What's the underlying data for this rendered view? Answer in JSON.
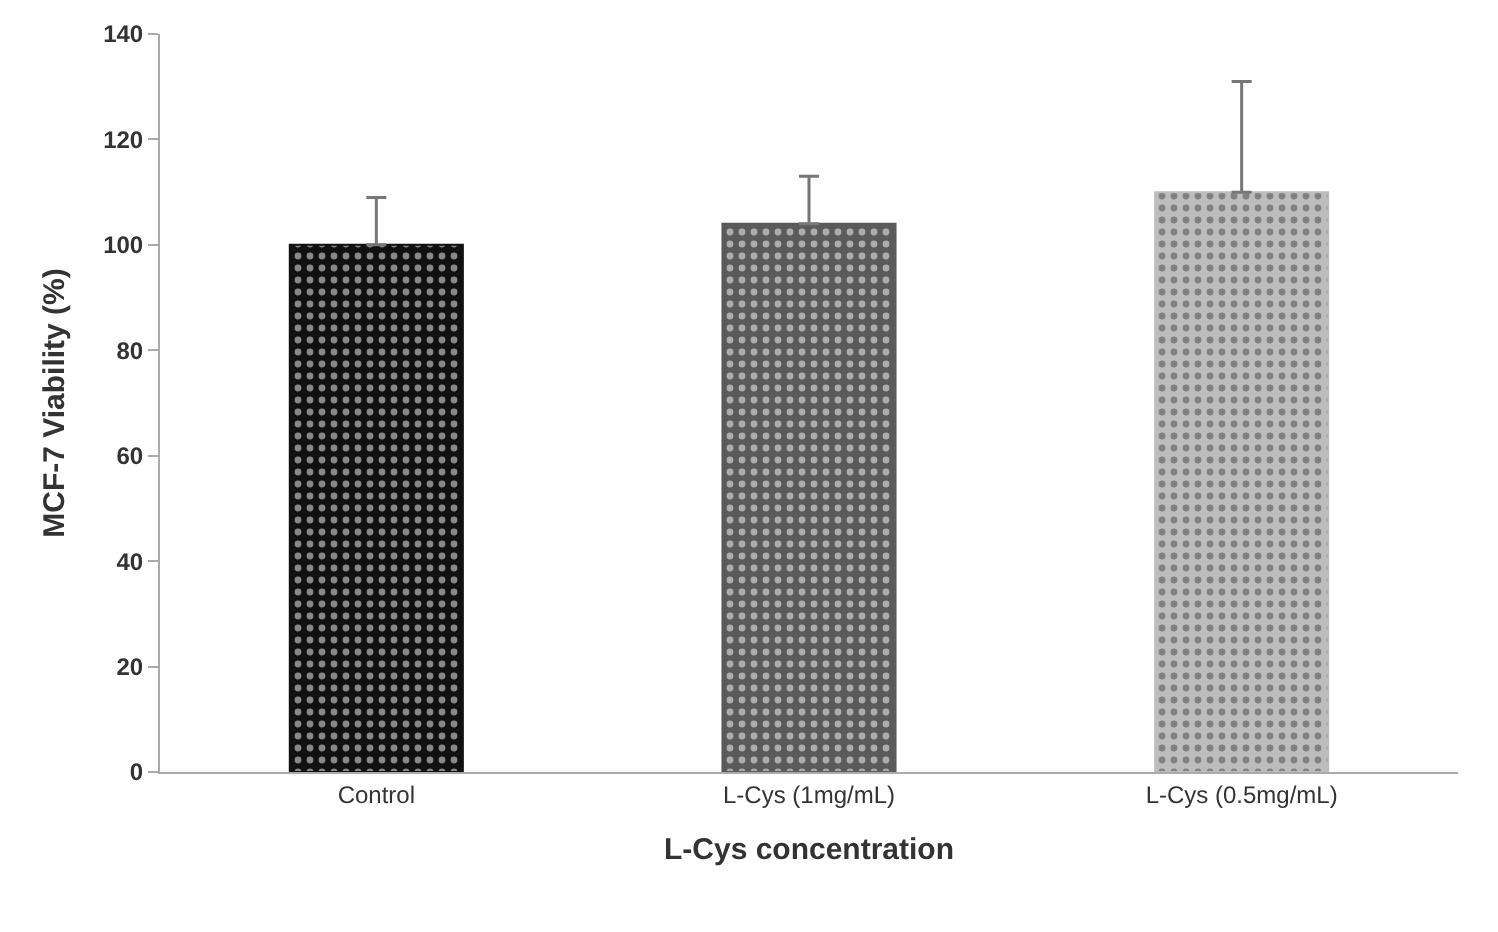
{
  "chart_data": {
    "type": "bar",
    "xlabel": "L-Cys concentration",
    "ylabel": "MCF-7 Viability (%)",
    "categories": [
      "Control",
      "L-Cys (1mg/mL)",
      "L-Cys (0.5mg/mL)"
    ],
    "values": [
      100,
      104,
      110
    ],
    "errors": [
      [
        100,
        109
      ],
      [
        104,
        113
      ],
      [
        110,
        131
      ]
    ],
    "colors": [
      "#111111",
      "#5a5a5a",
      "#bdbdbd"
    ],
    "ylim": [
      0,
      140
    ],
    "yticks": [
      0,
      20,
      40,
      60,
      80,
      100,
      120,
      140
    ]
  }
}
